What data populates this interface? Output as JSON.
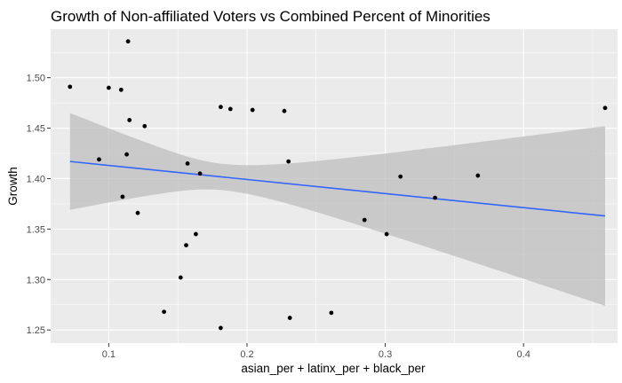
{
  "chart_data": {
    "type": "scatter",
    "title": "Growth of Non-affiliated Voters vs Combined Percent of Minorities",
    "xlabel": "asian_per + latinx_per + black_per",
    "ylabel": "Growth",
    "xlim": [
      0.058,
      0.468
    ],
    "ylim": [
      1.237,
      1.548
    ],
    "x_ticks": [
      0.1,
      0.2,
      0.3,
      0.4
    ],
    "x_tick_labels": [
      "0.1",
      "0.2",
      "0.3",
      "0.4"
    ],
    "y_ticks": [
      1.25,
      1.3,
      1.35,
      1.4,
      1.45,
      1.5
    ],
    "y_tick_labels": [
      "1.25",
      "1.30",
      "1.35",
      "1.40",
      "1.45",
      "1.50"
    ],
    "grid": true,
    "legend": "none",
    "colors": {
      "panel": "#ebebeb",
      "grid_major": "#ffffff",
      "point": "#000000",
      "smooth_line": "#3366ff",
      "confidence_band": "#bdbdbd"
    },
    "points": [
      {
        "x": 0.072,
        "y": 1.491
      },
      {
        "x": 0.093,
        "y": 1.419
      },
      {
        "x": 0.1,
        "y": 1.49
      },
      {
        "x": 0.109,
        "y": 1.488
      },
      {
        "x": 0.11,
        "y": 1.382
      },
      {
        "x": 0.113,
        "y": 1.424
      },
      {
        "x": 0.114,
        "y": 1.536
      },
      {
        "x": 0.115,
        "y": 1.458
      },
      {
        "x": 0.121,
        "y": 1.366
      },
      {
        "x": 0.126,
        "y": 1.452
      },
      {
        "x": 0.14,
        "y": 1.268
      },
      {
        "x": 0.152,
        "y": 1.302
      },
      {
        "x": 0.156,
        "y": 1.334
      },
      {
        "x": 0.157,
        "y": 1.415
      },
      {
        "x": 0.163,
        "y": 1.345
      },
      {
        "x": 0.166,
        "y": 1.405
      },
      {
        "x": 0.181,
        "y": 1.471
      },
      {
        "x": 0.181,
        "y": 1.252
      },
      {
        "x": 0.188,
        "y": 1.469
      },
      {
        "x": 0.204,
        "y": 1.468
      },
      {
        "x": 0.227,
        "y": 1.467
      },
      {
        "x": 0.23,
        "y": 1.417
      },
      {
        "x": 0.231,
        "y": 1.262
      },
      {
        "x": 0.261,
        "y": 1.267
      },
      {
        "x": 0.285,
        "y": 1.359
      },
      {
        "x": 0.301,
        "y": 1.345
      },
      {
        "x": 0.311,
        "y": 1.402
      },
      {
        "x": 0.336,
        "y": 1.381
      },
      {
        "x": 0.367,
        "y": 1.403
      },
      {
        "x": 0.459,
        "y": 1.47
      }
    ],
    "smooth": {
      "method": "linear",
      "x_range": [
        0.072,
        0.459
      ],
      "fit_start": 1.417,
      "fit_end": 1.363,
      "se_lower_start": 1.369,
      "se_upper_start": 1.465,
      "se_lower_end": 1.275,
      "se_upper_end": 1.453,
      "se_mean_x": 0.182,
      "se_min_halfwidth": 0.013
    }
  }
}
